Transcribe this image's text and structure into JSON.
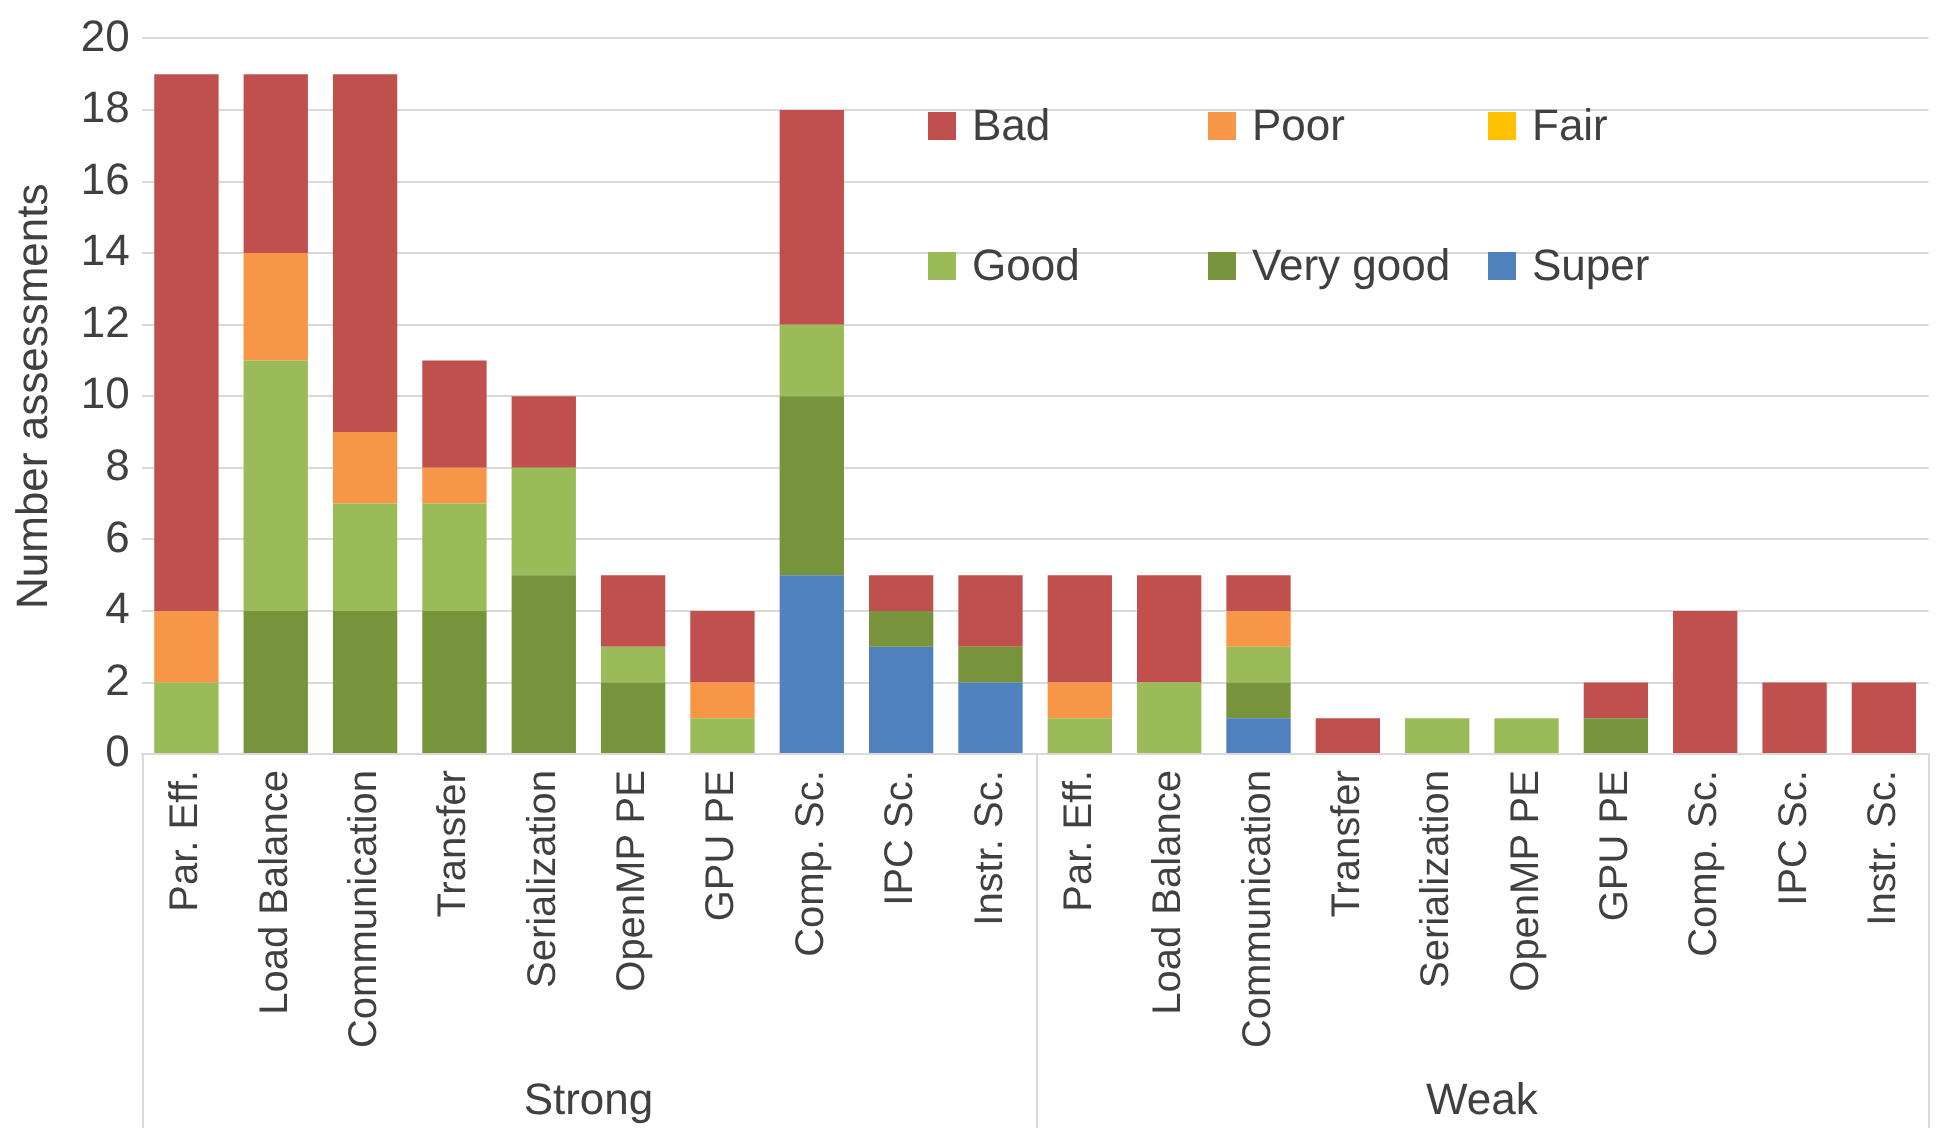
{
  "chart_data": {
    "type": "bar",
    "stacked": true,
    "ylabel": "Number assessments",
    "categories": [
      "Par. Eff.",
      "Load Balance",
      "Communication",
      "Transfer",
      "Serialization",
      "OpenMP PE",
      "GPU PE",
      "Comp. Sc.",
      "IPC Sc.",
      "Instr. Sc.",
      "Par. Eff.",
      "Load Balance",
      "Communication",
      "Transfer",
      "Serialization",
      "OpenMP PE",
      "GPU PE",
      "Comp. Sc.",
      "IPC Sc.",
      "Instr. Sc."
    ],
    "series": [
      {
        "name": "Super",
        "color": "#4f81bd",
        "values": [
          0,
          0,
          0,
          0,
          0,
          0,
          0,
          5,
          3,
          2,
          0,
          0,
          1,
          0,
          0,
          0,
          0,
          0,
          0,
          0
        ]
      },
      {
        "name": "Very good",
        "color": "#77933c",
        "values": [
          0,
          4,
          4,
          4,
          5,
          2,
          0,
          5,
          1,
          1,
          0,
          0,
          1,
          0,
          0,
          0,
          1,
          0,
          0,
          0
        ]
      },
      {
        "name": "Good",
        "color": "#9bbb59",
        "values": [
          2,
          7,
          3,
          3,
          3,
          1,
          1,
          2,
          0,
          0,
          1,
          2,
          1,
          0,
          1,
          1,
          0,
          0,
          0,
          0
        ]
      },
      {
        "name": "Fair",
        "color": "#ffc000",
        "values": [
          0,
          0,
          0,
          0,
          0,
          0,
          0,
          0,
          0,
          0,
          0,
          0,
          0,
          0,
          0,
          0,
          0,
          0,
          0,
          0
        ]
      },
      {
        "name": "Poor",
        "color": "#f79646",
        "values": [
          2,
          3,
          2,
          1,
          0,
          0,
          1,
          0,
          0,
          0,
          1,
          0,
          1,
          0,
          0,
          0,
          0,
          0,
          0,
          0
        ]
      },
      {
        "name": "Bad",
        "color": "#c0504d",
        "values": [
          15,
          5,
          10,
          3,
          2,
          2,
          2,
          6,
          1,
          2,
          3,
          3,
          1,
          1,
          0,
          0,
          1,
          4,
          2,
          2
        ]
      }
    ],
    "ylim": [
      0,
      20
    ],
    "yticks": [
      0,
      2,
      4,
      6,
      8,
      10,
      12,
      14,
      16,
      18,
      20
    ],
    "grid": "y",
    "legend": "top right",
    "annotations": [
      "Strong",
      "Weak"
    ]
  }
}
